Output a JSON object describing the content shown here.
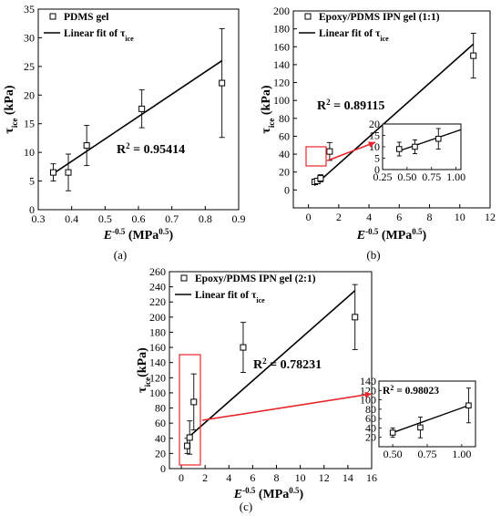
{
  "chart_data": [
    {
      "panel_label": "(a)",
      "type": "scatter",
      "xlabel_main": "E",
      "xlabel_sup": "-0.5",
      "xlabel_unit": " (MPa",
      "xlabel_unit_sup": "0.5",
      "xlabel_close": ")",
      "ylabel_main": "τ",
      "ylabel_sub": "ice",
      "ylabel_unit": " (kPa)",
      "xlim": [
        0.3,
        0.9
      ],
      "ylim": [
        0,
        35
      ],
      "xticks": [
        "0.3",
        "0.4",
        "0.5",
        "0.6",
        "0.7",
        "0.8",
        "0.9"
      ],
      "yticks": [
        "0",
        "5",
        "10",
        "15",
        "20",
        "25",
        "30",
        "35"
      ],
      "series": [
        {
          "name": "PDMS gel",
          "points": [
            {
              "x": 0.345,
              "y": 6.5,
              "err": 1.5
            },
            {
              "x": 0.39,
              "y": 6.5,
              "err": 3.2
            },
            {
              "x": 0.445,
              "y": 11.2,
              "err": 3.5
            },
            {
              "x": 0.61,
              "y": 17.6,
              "err": 3.3
            },
            {
              "x": 0.85,
              "y": 22.1,
              "err": 9.5
            }
          ]
        }
      ],
      "fit": {
        "name_main": "Linear fit of τ",
        "name_sub": "ice",
        "x": [
          0.345,
          0.85
        ],
        "y": [
          6.3,
          26.0
        ]
      },
      "annotation_main": "R",
      "annotation_sup": "2",
      "annotation_rest": " = 0.95414"
    },
    {
      "panel_label": "(b)",
      "type": "scatter",
      "xlabel_main": "E",
      "xlabel_sup": "-0.5",
      "xlabel_unit": " (MPa",
      "xlabel_unit_sup": "0.5",
      "xlabel_close": ")",
      "ylabel_main": "τ",
      "ylabel_sub": "ice",
      "ylabel_unit": " (kPa)",
      "xlim": [
        -1,
        12
      ],
      "ylim": [
        -20,
        200
      ],
      "xticks": [
        "0",
        "2",
        "4",
        "6",
        "8",
        "10",
        "12"
      ],
      "yticks": [
        "0",
        "20",
        "40",
        "60",
        "80",
        "100",
        "120",
        "140",
        "160",
        "180",
        "200"
      ],
      "series": [
        {
          "name": "Epoxy/PDMS IPN gel (1:1)",
          "points": [
            {
              "x": 0.42,
              "y": 9.0,
              "err": 3.0
            },
            {
              "x": 0.58,
              "y": 10.0,
              "err": 3.0
            },
            {
              "x": 0.8,
              "y": 13.0,
              "err": 4.0
            },
            {
              "x": 1.4,
              "y": 43.0,
              "err": 10.0
            },
            {
              "x": 10.9,
              "y": 150.0,
              "err": 25.0
            }
          ]
        }
      ],
      "fit": {
        "name_main": "Linear fit of τ",
        "name_sub": "ice",
        "x": [
          0.4,
          10.9
        ],
        "y": [
          5.0,
          163.0
        ]
      },
      "annotation_main": "R",
      "annotation_sup": "2",
      "annotation_rest": " = 0.89115",
      "inset": {
        "xlim": [
          0.25,
          1.05
        ],
        "ylim": [
          0,
          20
        ],
        "xticks": [
          "0.25",
          "0.50",
          "0.75",
          "1.00"
        ],
        "yticks": [
          "0",
          "5",
          "10",
          "15",
          "20"
        ],
        "points": [
          {
            "x": 0.42,
            "y": 9.0,
            "err": 3.0
          },
          {
            "x": 0.58,
            "y": 10.0,
            "err": 3.0
          },
          {
            "x": 0.82,
            "y": 13.5,
            "err": 4.5
          }
        ],
        "fit": {
          "x": [
            0.42,
            1.05
          ],
          "y": [
            8.2,
            17.5
          ]
        }
      }
    },
    {
      "panel_label": "(c)",
      "type": "scatter",
      "xlabel_main": "E",
      "xlabel_sup": "-0.5",
      "xlabel_unit": " (MPa",
      "xlabel_unit_sup": "0.5",
      "xlabel_close": ")",
      "ylabel_main": "τ",
      "ylabel_sub": "ice",
      "ylabel_unit": "(kPa)",
      "xlim": [
        -1,
        16
      ],
      "ylim": [
        0,
        260
      ],
      "xticks": [
        "0",
        "2",
        "4",
        "6",
        "8",
        "10",
        "12",
        "14",
        "16"
      ],
      "yticks": [
        "0",
        "20",
        "40",
        "60",
        "80",
        "100",
        "120",
        "140",
        "160",
        "180",
        "200",
        "220",
        "240",
        "260"
      ],
      "series": [
        {
          "name": "Epoxy/PDMS IPN gel (2:1)",
          "points": [
            {
              "x": 0.5,
              "y": 30.0,
              "err": 10.0
            },
            {
              "x": 0.7,
              "y": 41.0,
              "err": 22.0
            },
            {
              "x": 1.05,
              "y": 88.0,
              "err": 37.0
            },
            {
              "x": 5.2,
              "y": 160.0,
              "err": 33.0
            },
            {
              "x": 14.6,
              "y": 200.0,
              "err": 43.0
            }
          ]
        }
      ],
      "fit": {
        "name_main": "Linear fit of τ",
        "name_sub": "ice",
        "x": [
          0.5,
          14.6
        ],
        "y": [
          40.0,
          235.0
        ]
      },
      "annotation_main": "R",
      "annotation_sup": "2",
      "annotation_rest": " = 0.78231",
      "inset": {
        "xlim": [
          0.4,
          1.1
        ],
        "ylim": [
          0,
          140
        ],
        "xticks": [
          "0.50",
          "0.75",
          "1.00"
        ],
        "yticks": [
          "20",
          "40",
          "60",
          "80",
          "100",
          "120",
          "140"
        ],
        "points": [
          {
            "x": 0.5,
            "y": 30.0,
            "err": 10.0
          },
          {
            "x": 0.7,
            "y": 41.0,
            "err": 22.0
          },
          {
            "x": 1.05,
            "y": 88.0,
            "err": 37.0
          }
        ],
        "fit": {
          "x": [
            0.5,
            1.05
          ],
          "y": [
            30.0,
            88.0
          ]
        },
        "annotation_main": "R",
        "annotation_sup": "2",
        "annotation_rest": " = 0.98023"
      }
    }
  ]
}
